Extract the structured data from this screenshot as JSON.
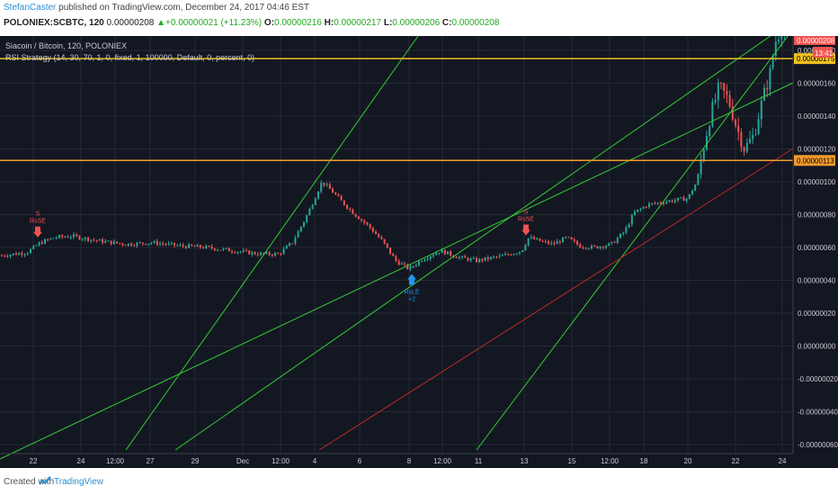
{
  "header": {
    "author": "StefanCaster",
    "published_text": " published on TradingView.com, December 24, 2017 04:46 EST",
    "symbol": "POLONIEX:SCBTC, 120",
    "last": "0.00000208",
    "change": "+0.00000021 (+11.23%)",
    "open_label": "O:",
    "open": "0.00000216",
    "high_label": "H:",
    "high": "0.00000217",
    "low_label": "L:",
    "low": "0.00000206",
    "close_label": "C:",
    "close": "0.00000208"
  },
  "legend": {
    "title": "Siacoin / Bitcoin, 120, POLONIEX",
    "indicator": "RSI Strategy (14, 30, 70, 1, 0, fixed, 1, 100000, Default, 0, percent, 0)"
  },
  "price_badges": {
    "current": "0.00000208",
    "countdown": "13:41"
  },
  "footer": {
    "created_with": "Created with",
    "brand": "TradingView"
  },
  "colors": {
    "background": "#131722",
    "grid": "#262a35",
    "up": "#26a69a",
    "down": "#ef5350",
    "trendline": "#33cc33",
    "redline": "#b82828",
    "resistance": "#f0c020",
    "support": "#f29a2e",
    "long_signal": "#2196f3"
  },
  "chart_data": {
    "type": "candlestick",
    "title": "Siacoin / Bitcoin, 120, POLONIEX",
    "ylim": [
      -7e-07,
      2.1e-06
    ],
    "y_ticks": [
      "0.00000180",
      "0.00000160",
      "0.00000140",
      "0.00000120",
      "0.00000100",
      "0.00000080",
      "0.00000060",
      "0.00000040",
      "0.00000020",
      "0.00000000",
      "-0.00000020",
      "-0.00000040",
      "-0.00000060"
    ],
    "x_ticks": [
      "22",
      "24",
      "12:00",
      "27",
      "29",
      "Dec",
      "12:00",
      "4",
      "6",
      "8",
      "12:00",
      "11",
      "13",
      "15",
      "12:00",
      "18",
      "20",
      "22",
      "24"
    ],
    "horizontal_levels": [
      {
        "name": "resistance",
        "value": "0.00000175"
      },
      {
        "name": "support",
        "value": "0.00000113"
      }
    ],
    "price_path": [
      [
        0,
        5.5e-07
      ],
      [
        30,
        5.7e-07
      ],
      [
        45,
        6.3e-07
      ],
      [
        60,
        6.6e-07
      ],
      [
        80,
        6.7e-07
      ],
      [
        110,
        6.4e-07
      ],
      [
        140,
        6.2e-07
      ],
      [
        170,
        6.3e-07
      ],
      [
        200,
        6.1e-07
      ],
      [
        230,
        6e-07
      ],
      [
        260,
        5.8e-07
      ],
      [
        290,
        5.6e-07
      ],
      [
        310,
        5.6e-07
      ],
      [
        325,
        6.3e-07
      ],
      [
        340,
        7.8e-07
      ],
      [
        350,
        9e-07
      ],
      [
        358,
        1e-06
      ],
      [
        368,
        9.5e-07
      ],
      [
        380,
        8.8e-07
      ],
      [
        395,
        8e-07
      ],
      [
        410,
        7.3e-07
      ],
      [
        425,
        6.4e-07
      ],
      [
        440,
        5.2e-07
      ],
      [
        455,
        4.7e-07
      ],
      [
        470,
        5.3e-07
      ],
      [
        490,
        5.8e-07
      ],
      [
        510,
        5.4e-07
      ],
      [
        530,
        5.2e-07
      ],
      [
        560,
        5.5e-07
      ],
      [
        580,
        5.8e-07
      ],
      [
        588,
        6.6e-07
      ],
      [
        600,
        6.4e-07
      ],
      [
        615,
        6.2e-07
      ],
      [
        630,
        6.6e-07
      ],
      [
        645,
        6.1e-07
      ],
      [
        660,
        6e-07
      ],
      [
        680,
        6.2e-07
      ],
      [
        695,
        7e-07
      ],
      [
        705,
        8.1e-07
      ],
      [
        720,
        8.6e-07
      ],
      [
        740,
        8.8e-07
      ],
      [
        765,
        9e-07
      ],
      [
        775,
        1e-06
      ],
      [
        782,
        1.2e-06
      ],
      [
        790,
        1.4e-06
      ],
      [
        800,
        1.58e-06
      ],
      [
        810,
        1.5e-06
      ],
      [
        820,
        1.32e-06
      ],
      [
        828,
        1.2e-06
      ],
      [
        838,
        1.28e-06
      ],
      [
        848,
        1.5e-06
      ],
      [
        856,
        1.65e-06
      ],
      [
        862,
        1.85e-06
      ],
      [
        870,
        1.95e-06
      ],
      [
        878,
        2.08e-06
      ]
    ],
    "annotations": [
      {
        "label": "S",
        "sub": "RsSE",
        "type": "sell",
        "x": 42
      },
      {
        "label": "RsLE",
        "sub": "+2",
        "type": "buy",
        "x": 458
      },
      {
        "label": "S",
        "sub": "RsSE",
        "type": "sell",
        "x": 585
      }
    ]
  }
}
